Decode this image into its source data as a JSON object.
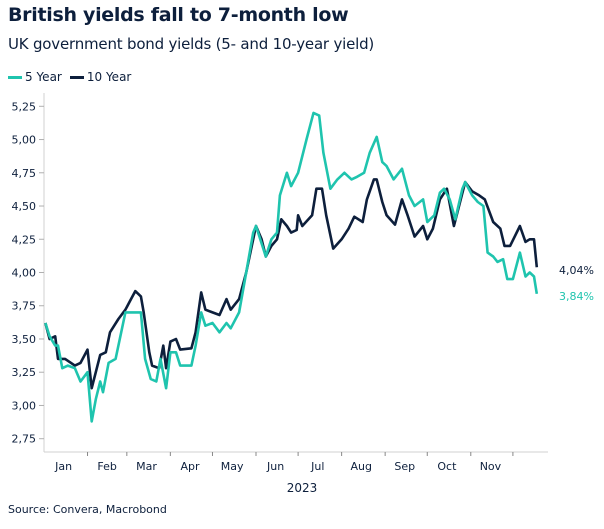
{
  "chart_data": {
    "type": "line",
    "title": "British yields fall to 7-month low",
    "subtitle": "UK government bond yields (5- and 10-year yield)",
    "xlabel": "2023",
    "ylabel": "",
    "xlim": [
      "2023-01-01",
      "2023-12-26"
    ],
    "ylim": [
      2.65,
      5.35
    ],
    "y_ticks": [
      "2,75",
      "3,00",
      "3,25",
      "3,50",
      "3,75",
      "4,00",
      "4,25",
      "4,50",
      "4,75",
      "5,00",
      "5,25"
    ],
    "y_tick_values": [
      2.75,
      3.0,
      3.25,
      3.5,
      3.75,
      4.0,
      4.25,
      4.5,
      4.75,
      5.0,
      5.25
    ],
    "x_ticks": [
      "Jan",
      "Feb",
      "Mar",
      "Apr",
      "May",
      "Jun",
      "Jul",
      "Aug",
      "Sep",
      "Oct",
      "Nov"
    ],
    "grid": false,
    "legend_position": "top-left",
    "series": [
      {
        "name": "5 Year",
        "color": "#1fc4ae",
        "end_label": "3,84%",
        "points": [
          [
            "2023-01-02",
            3.62
          ],
          [
            "2023-01-05",
            3.52
          ],
          [
            "2023-01-09",
            3.45
          ],
          [
            "2023-01-11",
            3.45
          ],
          [
            "2023-01-14",
            3.28
          ],
          [
            "2023-01-18",
            3.3
          ],
          [
            "2023-01-23",
            3.28
          ],
          [
            "2023-01-27",
            3.18
          ],
          [
            "2023-02-01",
            3.25
          ],
          [
            "2023-02-04",
            2.88
          ],
          [
            "2023-02-07",
            3.05
          ],
          [
            "2023-02-10",
            3.18
          ],
          [
            "2023-02-12",
            3.1
          ],
          [
            "2023-02-16",
            3.32
          ],
          [
            "2023-02-21",
            3.35
          ],
          [
            "2023-02-24",
            3.5
          ],
          [
            "2023-02-28",
            3.7
          ],
          [
            "2023-03-04",
            3.7
          ],
          [
            "2023-03-07",
            3.7
          ],
          [
            "2023-03-11",
            3.7
          ],
          [
            "2023-03-14",
            3.35
          ],
          [
            "2023-03-18",
            3.2
          ],
          [
            "2023-03-22",
            3.18
          ],
          [
            "2023-03-25",
            3.35
          ],
          [
            "2023-03-29",
            3.13
          ],
          [
            "2023-04-01",
            3.4
          ],
          [
            "2023-04-05",
            3.4
          ],
          [
            "2023-04-08",
            3.3
          ],
          [
            "2023-04-16",
            3.3
          ],
          [
            "2023-04-19",
            3.45
          ],
          [
            "2023-04-23",
            3.7
          ],
          [
            "2023-04-26",
            3.6
          ],
          [
            "2023-05-01",
            3.62
          ],
          [
            "2023-05-06",
            3.55
          ],
          [
            "2023-05-11",
            3.62
          ],
          [
            "2023-05-14",
            3.58
          ],
          [
            "2023-05-20",
            3.7
          ],
          [
            "2023-05-25",
            4.0
          ],
          [
            "2023-05-30",
            4.3
          ],
          [
            "2023-06-01",
            4.35
          ],
          [
            "2023-06-08",
            4.12
          ],
          [
            "2023-06-12",
            4.25
          ],
          [
            "2023-06-16",
            4.3
          ],
          [
            "2023-06-18",
            4.58
          ],
          [
            "2023-06-23",
            4.75
          ],
          [
            "2023-06-26",
            4.65
          ],
          [
            "2023-07-01",
            4.75
          ],
          [
            "2023-07-07",
            5.0
          ],
          [
            "2023-07-12",
            5.2
          ],
          [
            "2023-07-16",
            5.18
          ],
          [
            "2023-07-19",
            4.9
          ],
          [
            "2023-07-24",
            4.63
          ],
          [
            "2023-07-29",
            4.7
          ],
          [
            "2023-08-03",
            4.75
          ],
          [
            "2023-08-08",
            4.7
          ],
          [
            "2023-08-12",
            4.72
          ],
          [
            "2023-08-17",
            4.75
          ],
          [
            "2023-08-21",
            4.9
          ],
          [
            "2023-08-26",
            5.02
          ],
          [
            "2023-08-30",
            4.83
          ],
          [
            "2023-09-02",
            4.8
          ],
          [
            "2023-09-07",
            4.7
          ],
          [
            "2023-09-13",
            4.78
          ],
          [
            "2023-09-18",
            4.58
          ],
          [
            "2023-09-22",
            4.5
          ],
          [
            "2023-09-28",
            4.55
          ],
          [
            "2023-10-01",
            4.38
          ],
          [
            "2023-10-06",
            4.43
          ],
          [
            "2023-10-10",
            4.6
          ],
          [
            "2023-10-13",
            4.63
          ],
          [
            "2023-10-17",
            4.55
          ],
          [
            "2023-10-21",
            4.4
          ],
          [
            "2023-10-26",
            4.63
          ],
          [
            "2023-10-28",
            4.68
          ],
          [
            "2023-11-02",
            4.58
          ],
          [
            "2023-11-06",
            4.53
          ],
          [
            "2023-11-10",
            4.5
          ],
          [
            "2023-11-13",
            4.15
          ],
          [
            "2023-11-17",
            4.12
          ],
          [
            "2023-11-20",
            4.08
          ],
          [
            "2023-11-24",
            4.1
          ],
          [
            "2023-11-27",
            3.95
          ],
          [
            "2023-12-01",
            3.95
          ],
          [
            "2023-12-06",
            4.15
          ],
          [
            "2023-12-10",
            3.97
          ],
          [
            "2023-12-13",
            4.0
          ],
          [
            "2023-12-16",
            3.97
          ],
          [
            "2023-12-18",
            3.84
          ]
        ]
      },
      {
        "name": "10 Year",
        "color": "#0d1f3c",
        "end_label": "4,04%",
        "points": [
          [
            "2023-01-02",
            3.62
          ],
          [
            "2023-01-05",
            3.5
          ],
          [
            "2023-01-09",
            3.52
          ],
          [
            "2023-01-11",
            3.35
          ],
          [
            "2023-01-16",
            3.35
          ],
          [
            "2023-01-23",
            3.3
          ],
          [
            "2023-01-27",
            3.32
          ],
          [
            "2023-02-01",
            3.42
          ],
          [
            "2023-02-04",
            3.13
          ],
          [
            "2023-02-10",
            3.38
          ],
          [
            "2023-02-14",
            3.4
          ],
          [
            "2023-02-17",
            3.55
          ],
          [
            "2023-02-23",
            3.65
          ],
          [
            "2023-02-28",
            3.72
          ],
          [
            "2023-03-04",
            3.8
          ],
          [
            "2023-03-07",
            3.86
          ],
          [
            "2023-03-11",
            3.82
          ],
          [
            "2023-03-13",
            3.7
          ],
          [
            "2023-03-17",
            3.4
          ],
          [
            "2023-03-19",
            3.3
          ],
          [
            "2023-03-24",
            3.28
          ],
          [
            "2023-03-27",
            3.45
          ],
          [
            "2023-03-29",
            3.28
          ],
          [
            "2023-04-01",
            3.48
          ],
          [
            "2023-04-05",
            3.5
          ],
          [
            "2023-04-08",
            3.42
          ],
          [
            "2023-04-16",
            3.43
          ],
          [
            "2023-04-19",
            3.55
          ],
          [
            "2023-04-23",
            3.85
          ],
          [
            "2023-04-26",
            3.72
          ],
          [
            "2023-05-01",
            3.7
          ],
          [
            "2023-05-06",
            3.68
          ],
          [
            "2023-05-11",
            3.8
          ],
          [
            "2023-05-14",
            3.72
          ],
          [
            "2023-05-20",
            3.8
          ],
          [
            "2023-05-25",
            4.0
          ],
          [
            "2023-05-29",
            4.2
          ],
          [
            "2023-06-01",
            4.35
          ],
          [
            "2023-06-05",
            4.25
          ],
          [
            "2023-06-08",
            4.12
          ],
          [
            "2023-06-12",
            4.2
          ],
          [
            "2023-06-16",
            4.25
          ],
          [
            "2023-06-19",
            4.4
          ],
          [
            "2023-06-23",
            4.35
          ],
          [
            "2023-06-26",
            4.3
          ],
          [
            "2023-06-30",
            4.32
          ],
          [
            "2023-07-01",
            4.43
          ],
          [
            "2023-07-04",
            4.35
          ],
          [
            "2023-07-11",
            4.43
          ],
          [
            "2023-07-14",
            4.63
          ],
          [
            "2023-07-18",
            4.63
          ],
          [
            "2023-07-21",
            4.43
          ],
          [
            "2023-07-26",
            4.18
          ],
          [
            "2023-08-01",
            4.25
          ],
          [
            "2023-08-06",
            4.33
          ],
          [
            "2023-08-10",
            4.42
          ],
          [
            "2023-08-16",
            4.38
          ],
          [
            "2023-08-19",
            4.55
          ],
          [
            "2023-08-24",
            4.7
          ],
          [
            "2023-08-26",
            4.7
          ],
          [
            "2023-08-30",
            4.53
          ],
          [
            "2023-09-02",
            4.43
          ],
          [
            "2023-09-08",
            4.36
          ],
          [
            "2023-09-13",
            4.55
          ],
          [
            "2023-09-17",
            4.43
          ],
          [
            "2023-09-22",
            4.27
          ],
          [
            "2023-09-28",
            4.35
          ],
          [
            "2023-10-01",
            4.25
          ],
          [
            "2023-10-05",
            4.33
          ],
          [
            "2023-10-10",
            4.55
          ],
          [
            "2023-10-15",
            4.63
          ],
          [
            "2023-10-20",
            4.35
          ],
          [
            "2023-10-28",
            4.68
          ],
          [
            "2023-11-02",
            4.61
          ],
          [
            "2023-11-07",
            4.58
          ],
          [
            "2023-11-11",
            4.55
          ],
          [
            "2023-11-17",
            4.38
          ],
          [
            "2023-11-22",
            4.33
          ],
          [
            "2023-11-25",
            4.2
          ],
          [
            "2023-11-29",
            4.2
          ],
          [
            "2023-12-06",
            4.35
          ],
          [
            "2023-12-10",
            4.23
          ],
          [
            "2023-12-13",
            4.25
          ],
          [
            "2023-12-16",
            4.25
          ],
          [
            "2023-12-18",
            4.04
          ]
        ]
      }
    ]
  },
  "source": "Source: Convera, Macrobond"
}
